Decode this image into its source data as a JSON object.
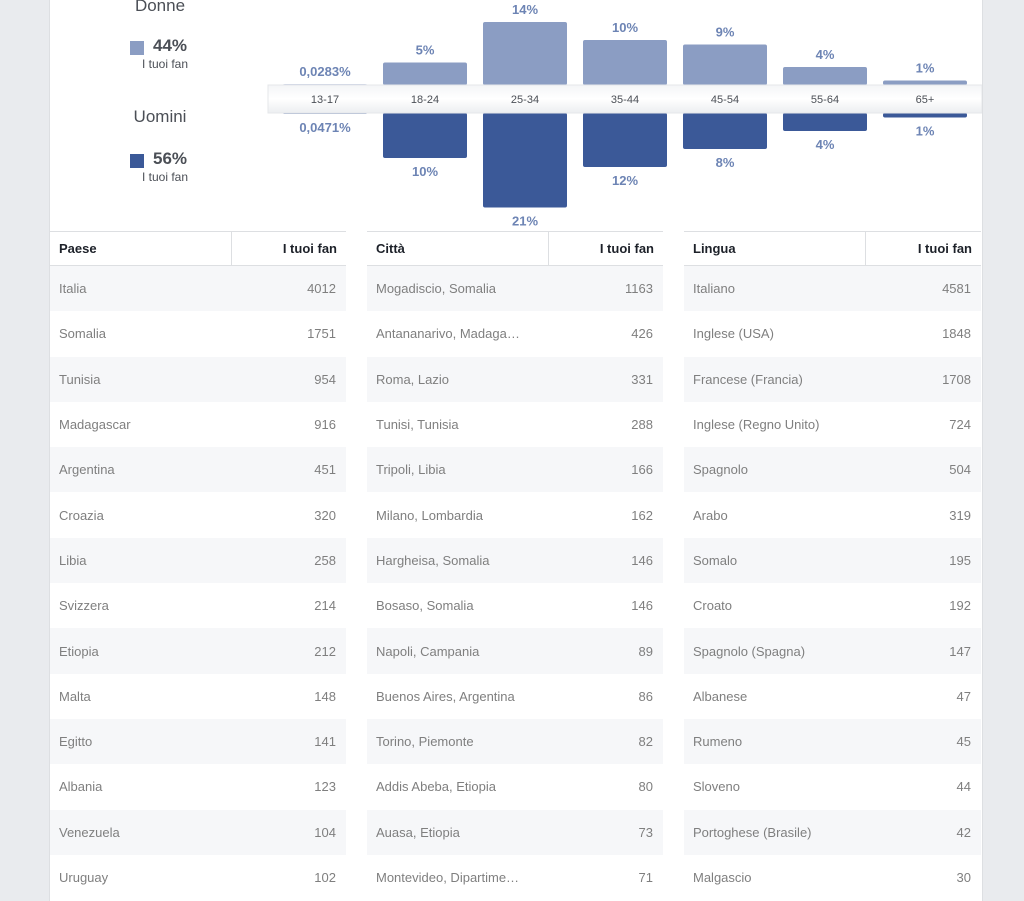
{
  "gender": {
    "women": {
      "label": "Donne",
      "pct": "44%",
      "sub": "I tuoi fan",
      "color": "#8b9dc3"
    },
    "men": {
      "label": "Uomini",
      "pct": "56%",
      "sub": "I tuoi fan",
      "color": "#3b5998"
    }
  },
  "chart_data": {
    "type": "bar",
    "categories": [
      "13-17",
      "18-24",
      "25-34",
      "35-44",
      "45-54",
      "55-64",
      "65+"
    ],
    "series": [
      {
        "name": "Donne",
        "values": [
          0.0283,
          5,
          14,
          10,
          9,
          4,
          1
        ],
        "labels": [
          "0,0283%",
          "5%",
          "14%",
          "10%",
          "9%",
          "4%",
          "1%"
        ],
        "color": "#8b9dc3"
      },
      {
        "name": "Uomini",
        "values": [
          0.0471,
          10,
          21,
          12,
          8,
          4,
          1
        ],
        "labels": [
          "0,0471%",
          "10%",
          "21%",
          "12%",
          "8%",
          "4%",
          "1%"
        ],
        "color": "#3b5998"
      }
    ],
    "label_color": "#6d84b4"
  },
  "tables": {
    "country": {
      "header": {
        "name": "Paese",
        "value": "I tuoi fan"
      },
      "rows": [
        {
          "name": "Italia",
          "value": "4012"
        },
        {
          "name": "Somalia",
          "value": "1751"
        },
        {
          "name": "Tunisia",
          "value": "954"
        },
        {
          "name": "Madagascar",
          "value": "916"
        },
        {
          "name": "Argentina",
          "value": "451"
        },
        {
          "name": "Croazia",
          "value": "320"
        },
        {
          "name": "Libia",
          "value": "258"
        },
        {
          "name": "Svizzera",
          "value": "214"
        },
        {
          "name": "Etiopia",
          "value": "212"
        },
        {
          "name": "Malta",
          "value": "148"
        },
        {
          "name": "Egitto",
          "value": "141"
        },
        {
          "name": "Albania",
          "value": "123"
        },
        {
          "name": "Venezuela",
          "value": "104"
        },
        {
          "name": "Uruguay",
          "value": "102"
        }
      ]
    },
    "city": {
      "header": {
        "name": "Città",
        "value": "I tuoi fan"
      },
      "rows": [
        {
          "name": "Mogadiscio, Somalia",
          "value": "1163"
        },
        {
          "name": "Antananarivo, Madaga…",
          "value": "426"
        },
        {
          "name": "Roma, Lazio",
          "value": "331"
        },
        {
          "name": "Tunisi, Tunisia",
          "value": "288"
        },
        {
          "name": "Tripoli, Libia",
          "value": "166"
        },
        {
          "name": "Milano, Lombardia",
          "value": "162"
        },
        {
          "name": "Hargheisa, Somalia",
          "value": "146"
        },
        {
          "name": "Bosaso, Somalia",
          "value": "146"
        },
        {
          "name": "Napoli, Campania",
          "value": "89"
        },
        {
          "name": "Buenos Aires, Argentina",
          "value": "86"
        },
        {
          "name": "Torino, Piemonte",
          "value": "82"
        },
        {
          "name": "Addis Abeba, Etiopia",
          "value": "80"
        },
        {
          "name": "Auasa, Etiopia",
          "value": "73"
        },
        {
          "name": "Montevideo, Dipartime…",
          "value": "71"
        }
      ]
    },
    "language": {
      "header": {
        "name": "Lingua",
        "value": "I tuoi fan"
      },
      "rows": [
        {
          "name": "Italiano",
          "value": "4581"
        },
        {
          "name": "Inglese (USA)",
          "value": "1848"
        },
        {
          "name": "Francese (Francia)",
          "value": "1708"
        },
        {
          "name": "Inglese (Regno Unito)",
          "value": "724"
        },
        {
          "name": "Spagnolo",
          "value": "504"
        },
        {
          "name": "Arabo",
          "value": "319"
        },
        {
          "name": "Somalo",
          "value": "195"
        },
        {
          "name": "Croato",
          "value": "192"
        },
        {
          "name": "Spagnolo (Spagna)",
          "value": "147"
        },
        {
          "name": "Albanese",
          "value": "47"
        },
        {
          "name": "Rumeno",
          "value": "45"
        },
        {
          "name": "Sloveno",
          "value": "44"
        },
        {
          "name": "Portoghese (Brasile)",
          "value": "42"
        },
        {
          "name": "Malgascio",
          "value": "30"
        }
      ]
    }
  }
}
